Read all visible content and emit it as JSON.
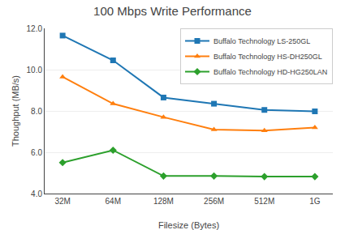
{
  "chart_data": {
    "type": "line",
    "title": "100 Mbps Write Performance",
    "xlabel": "Filesize (Bytes)",
    "ylabel": "Thoughput (MB/s)",
    "categories": [
      "32M",
      "64M",
      "128M",
      "256M",
      "512M",
      "1G"
    ],
    "series": [
      {
        "name": "Buffalo Technology LS-250GL",
        "marker": "square",
        "values": [
          11.65,
          10.45,
          8.65,
          8.35,
          8.05,
          7.98
        ]
      },
      {
        "name": "Buffalo Technology HS-DH250GL",
        "marker": "triangle-up",
        "values": [
          9.65,
          8.35,
          7.7,
          7.1,
          7.05,
          7.2
        ]
      },
      {
        "name": "Buffalo Technology HD-HG250LAN",
        "marker": "diamond",
        "values": [
          5.5,
          6.1,
          4.85,
          4.85,
          4.82,
          4.82
        ]
      }
    ],
    "ylim": [
      4.0,
      12.0
    ],
    "yticks": [
      {
        "value": 4.0,
        "label": "4.0"
      },
      {
        "value": 6.0,
        "label": "6.0"
      },
      {
        "value": 8.0,
        "label": "8.0"
      },
      {
        "value": 10.0,
        "label": "10.0"
      },
      {
        "value": 12.0,
        "label": "12.0"
      }
    ],
    "grid": true,
    "legend": "upper right"
  }
}
